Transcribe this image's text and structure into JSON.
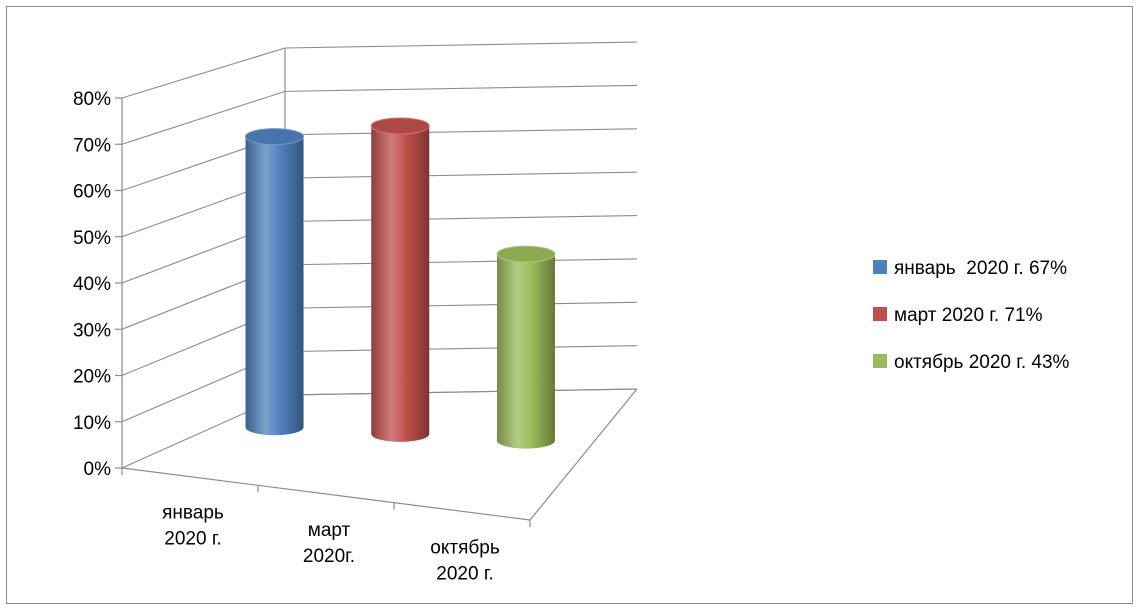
{
  "chart_data": {
    "type": "bar",
    "style": "3d-cylinder",
    "title": "",
    "xlabel": "",
    "ylabel": "",
    "ylim": [
      0,
      80
    ],
    "y_ticks": [
      "0%",
      "10%",
      "20%",
      "30%",
      "40%",
      "50%",
      "60%",
      "70%",
      "80%"
    ],
    "y_tick_values": [
      0,
      10,
      20,
      30,
      40,
      50,
      60,
      70,
      80
    ],
    "categories": [
      [
        "январь",
        "2020  г."
      ],
      [
        "март",
        "2020г."
      ],
      [
        "октябрь",
        "2020 г."
      ]
    ],
    "series": [
      {
        "name": "январь  2020 г. 67%",
        "value": 67,
        "color": "#4F81BD"
      },
      {
        "name": "март 2020 г. 71%",
        "value": 71,
        "color": "#C0504D"
      },
      {
        "name": "октябрь 2020 г. 43%",
        "value": 43,
        "color": "#9BBB59"
      }
    ],
    "grid": true,
    "legend_position": "right"
  }
}
